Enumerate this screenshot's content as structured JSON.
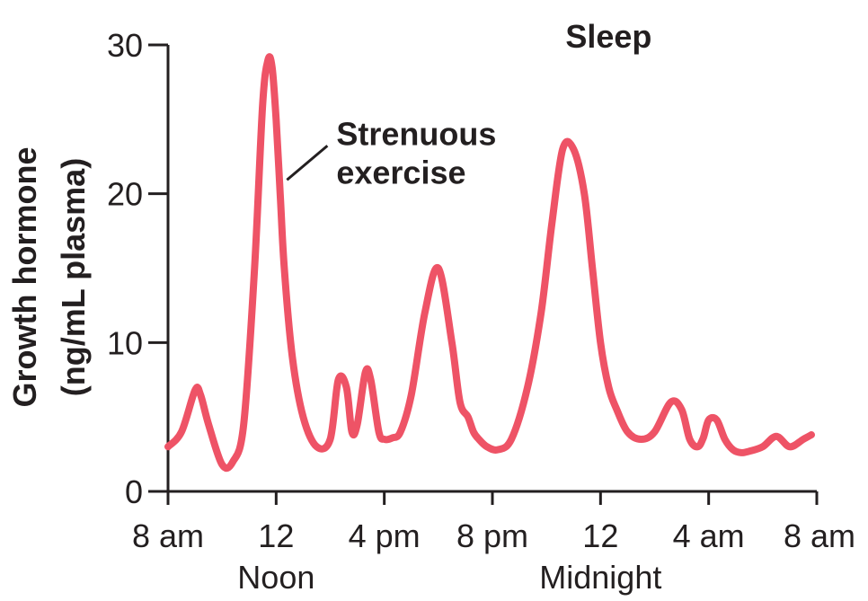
{
  "chart_data": {
    "type": "line",
    "xlim": [
      0,
      24
    ],
    "ylim": [
      0,
      30
    ],
    "x_ticks": [
      {
        "x": 0,
        "label": "8 am",
        "sub": ""
      },
      {
        "x": 4,
        "label": "12",
        "sub": "Noon"
      },
      {
        "x": 8,
        "label": "4 pm",
        "sub": ""
      },
      {
        "x": 12,
        "label": "8 pm",
        "sub": ""
      },
      {
        "x": 16,
        "label": "12",
        "sub": "Midnight"
      },
      {
        "x": 20,
        "label": "4 am",
        "sub": ""
      },
      {
        "x": 24,
        "label": "8 am",
        "sub": ""
      }
    ],
    "y_ticks": [
      0,
      10,
      20,
      30
    ],
    "ylabel_lines": [
      "Growth hormone",
      "(ng/mL plasma)"
    ],
    "grid": false,
    "color": "#ee5366",
    "annotations": [
      {
        "text_lines": [
          "Strenuous",
          "exercise"
        ],
        "x": 4.3,
        "y": 22.5
      },
      {
        "text_lines": [
          "Sleep"
        ],
        "x": 16.3,
        "y": 31.5
      }
    ],
    "series": [
      {
        "x": [
          0,
          0.5,
          1,
          1.2,
          1.5,
          2,
          2.4,
          2.8,
          3.2,
          3.5,
          3.7,
          3.85,
          4.0,
          4.15,
          4.3,
          4.6,
          5.0,
          5.5,
          6.0,
          6.3,
          6.6,
          6.8,
          7.0,
          7.3,
          7.5,
          7.8,
          8.0,
          8.3,
          8.6,
          9.0,
          9.5,
          10.0,
          10.5,
          10.8,
          11.1,
          11.3,
          11.5,
          11.8,
          12.2,
          12.7,
          13.3,
          13.8,
          14.2,
          14.6,
          15.0,
          15.4,
          15.7,
          16.0,
          16.3,
          16.6,
          17.0,
          17.5,
          18.0,
          18.6,
          19.0,
          19.3,
          19.6,
          19.8,
          20.0,
          20.3,
          20.6,
          20.9,
          21.2,
          21.5,
          22.0,
          22.5,
          23.0,
          23.5,
          23.8
        ],
        "y": [
          3.0,
          4.0,
          6.8,
          6.5,
          4.5,
          1.8,
          2.0,
          4.5,
          15,
          26,
          29,
          28.5,
          25,
          20,
          15,
          9,
          5,
          3.0,
          3.5,
          7.5,
          7.0,
          4.0,
          4.5,
          8.0,
          7.5,
          4.0,
          3.5,
          3.6,
          4.0,
          6.5,
          12,
          15,
          10,
          6.0,
          5.0,
          4.0,
          3.5,
          3.0,
          2.8,
          3.5,
          7,
          12,
          18,
          23,
          23,
          20,
          15,
          10,
          7,
          5.5,
          4.0,
          3.5,
          4.0,
          6.0,
          5.5,
          3.5,
          3.0,
          3.6,
          4.8,
          4.8,
          3.5,
          2.8,
          2.6,
          2.7,
          3.0,
          3.7,
          3.0,
          3.5,
          3.8
        ]
      }
    ]
  }
}
